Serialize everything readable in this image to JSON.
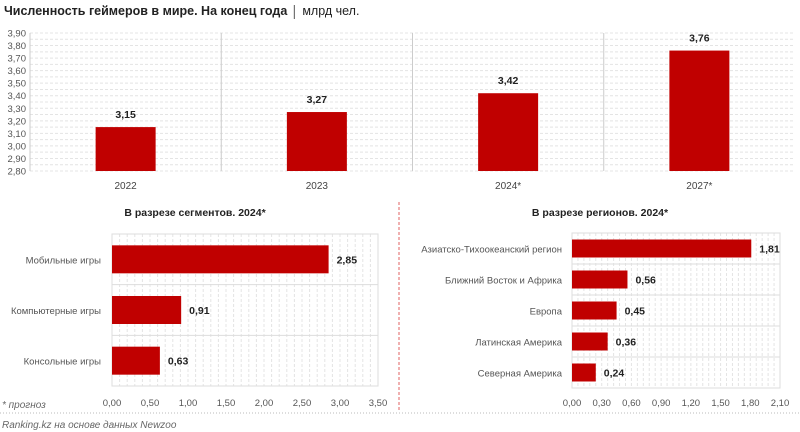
{
  "title": "Численность геймеров в мире. На конец года",
  "unit": "млрд чел.",
  "footnote": "* прогноз",
  "source": "Ranking.kz на основе данных Newzoo",
  "colors": {
    "bar": "#c00000",
    "grid": "#d9d9d9",
    "divider": "#e06060"
  },
  "chart_data": [
    {
      "type": "bar",
      "title": "Численность геймеров в мире. На конец года",
      "categories": [
        "2022",
        "2023",
        "2024*",
        "2027*"
      ],
      "values": [
        3.15,
        3.27,
        3.42,
        3.76
      ],
      "value_labels": [
        "3,15",
        "3,27",
        "3,42",
        "3,76"
      ],
      "ylim": [
        2.8,
        3.9
      ],
      "yticks": [
        "2,80",
        "2,90",
        "3,00",
        "3,10",
        "3,20",
        "3,30",
        "3,40",
        "3,50",
        "3,60",
        "3,70",
        "3,80",
        "3,90"
      ],
      "ylabel": "млрд чел.",
      "grid": true
    },
    {
      "type": "bar",
      "orientation": "horizontal",
      "title": "В разрезе сегментов. 2024*",
      "categories": [
        "Мобильные игры",
        "Компьютерные игры",
        "Консольные игры"
      ],
      "values": [
        2.85,
        0.91,
        0.63
      ],
      "value_labels": [
        "2,85",
        "0,91",
        "0,63"
      ],
      "xlim": [
        0,
        3.5
      ],
      "xticks": [
        "0,00",
        "0,50",
        "1,00",
        "1,50",
        "2,00",
        "2,50",
        "3,00",
        "3,50"
      ],
      "grid": true
    },
    {
      "type": "bar",
      "orientation": "horizontal",
      "title": "В разрезе регионов. 2024*",
      "categories": [
        "Азиатско-Тихоокеанский регион",
        "Ближний Восток и Африка",
        "Европа",
        "Латинская Америка",
        "Северная Америка"
      ],
      "values": [
        1.81,
        0.56,
        0.45,
        0.36,
        0.24
      ],
      "value_labels": [
        "1,81",
        "0,56",
        "0,45",
        "0,36",
        "0,24"
      ],
      "xlim": [
        0,
        2.1
      ],
      "xticks": [
        "0,00",
        "0,30",
        "0,60",
        "0,90",
        "1,20",
        "1,50",
        "1,80",
        "2,10"
      ],
      "grid": true
    }
  ]
}
